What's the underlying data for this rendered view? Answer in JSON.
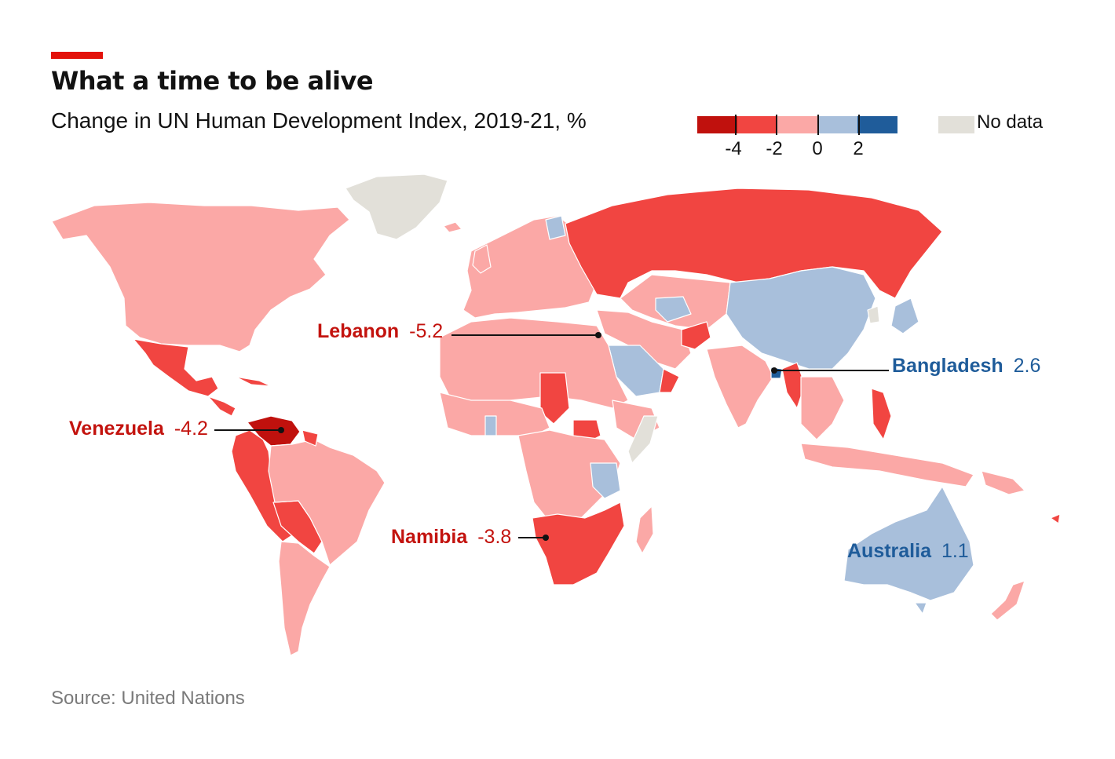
{
  "header": {
    "title": "What a time to be alive",
    "subtitle": "Change in UN Human Development Index, 2019-21, %"
  },
  "legend": {
    "bins": [
      {
        "color": "#c0110d"
      },
      {
        "color": "#f14541"
      },
      {
        "color": "#fba8a6"
      },
      {
        "color": "#a8bfdb"
      },
      {
        "color": "#1f5c9a"
      }
    ],
    "ticks": [
      "-4",
      "-2",
      "0",
      "2"
    ],
    "no_data": {
      "label": "No data",
      "color": "#e2e0d9"
    }
  },
  "colors": {
    "accent": "#e3120b",
    "strong_negative": "#c0110d",
    "negative": "#f14541",
    "slight_negative": "#fba8a6",
    "positive": "#a8bfdb",
    "strong_positive": "#1f5c9a",
    "no_data": "#e2e0d9",
    "red_label": "#c3130e",
    "blue_label": "#1f5c9a"
  },
  "annotations": {
    "lebanon": {
      "country": "Lebanon",
      "value": "-5.2"
    },
    "venezuela": {
      "country": "Venezuela",
      "value": "-4.2"
    },
    "namibia": {
      "country": "Namibia",
      "value": "-3.8"
    },
    "bangladesh": {
      "country": "Bangladesh",
      "value": "2.6"
    },
    "australia": {
      "country": "Australia",
      "value": "1.1"
    }
  },
  "source": "Source: United Nations"
}
